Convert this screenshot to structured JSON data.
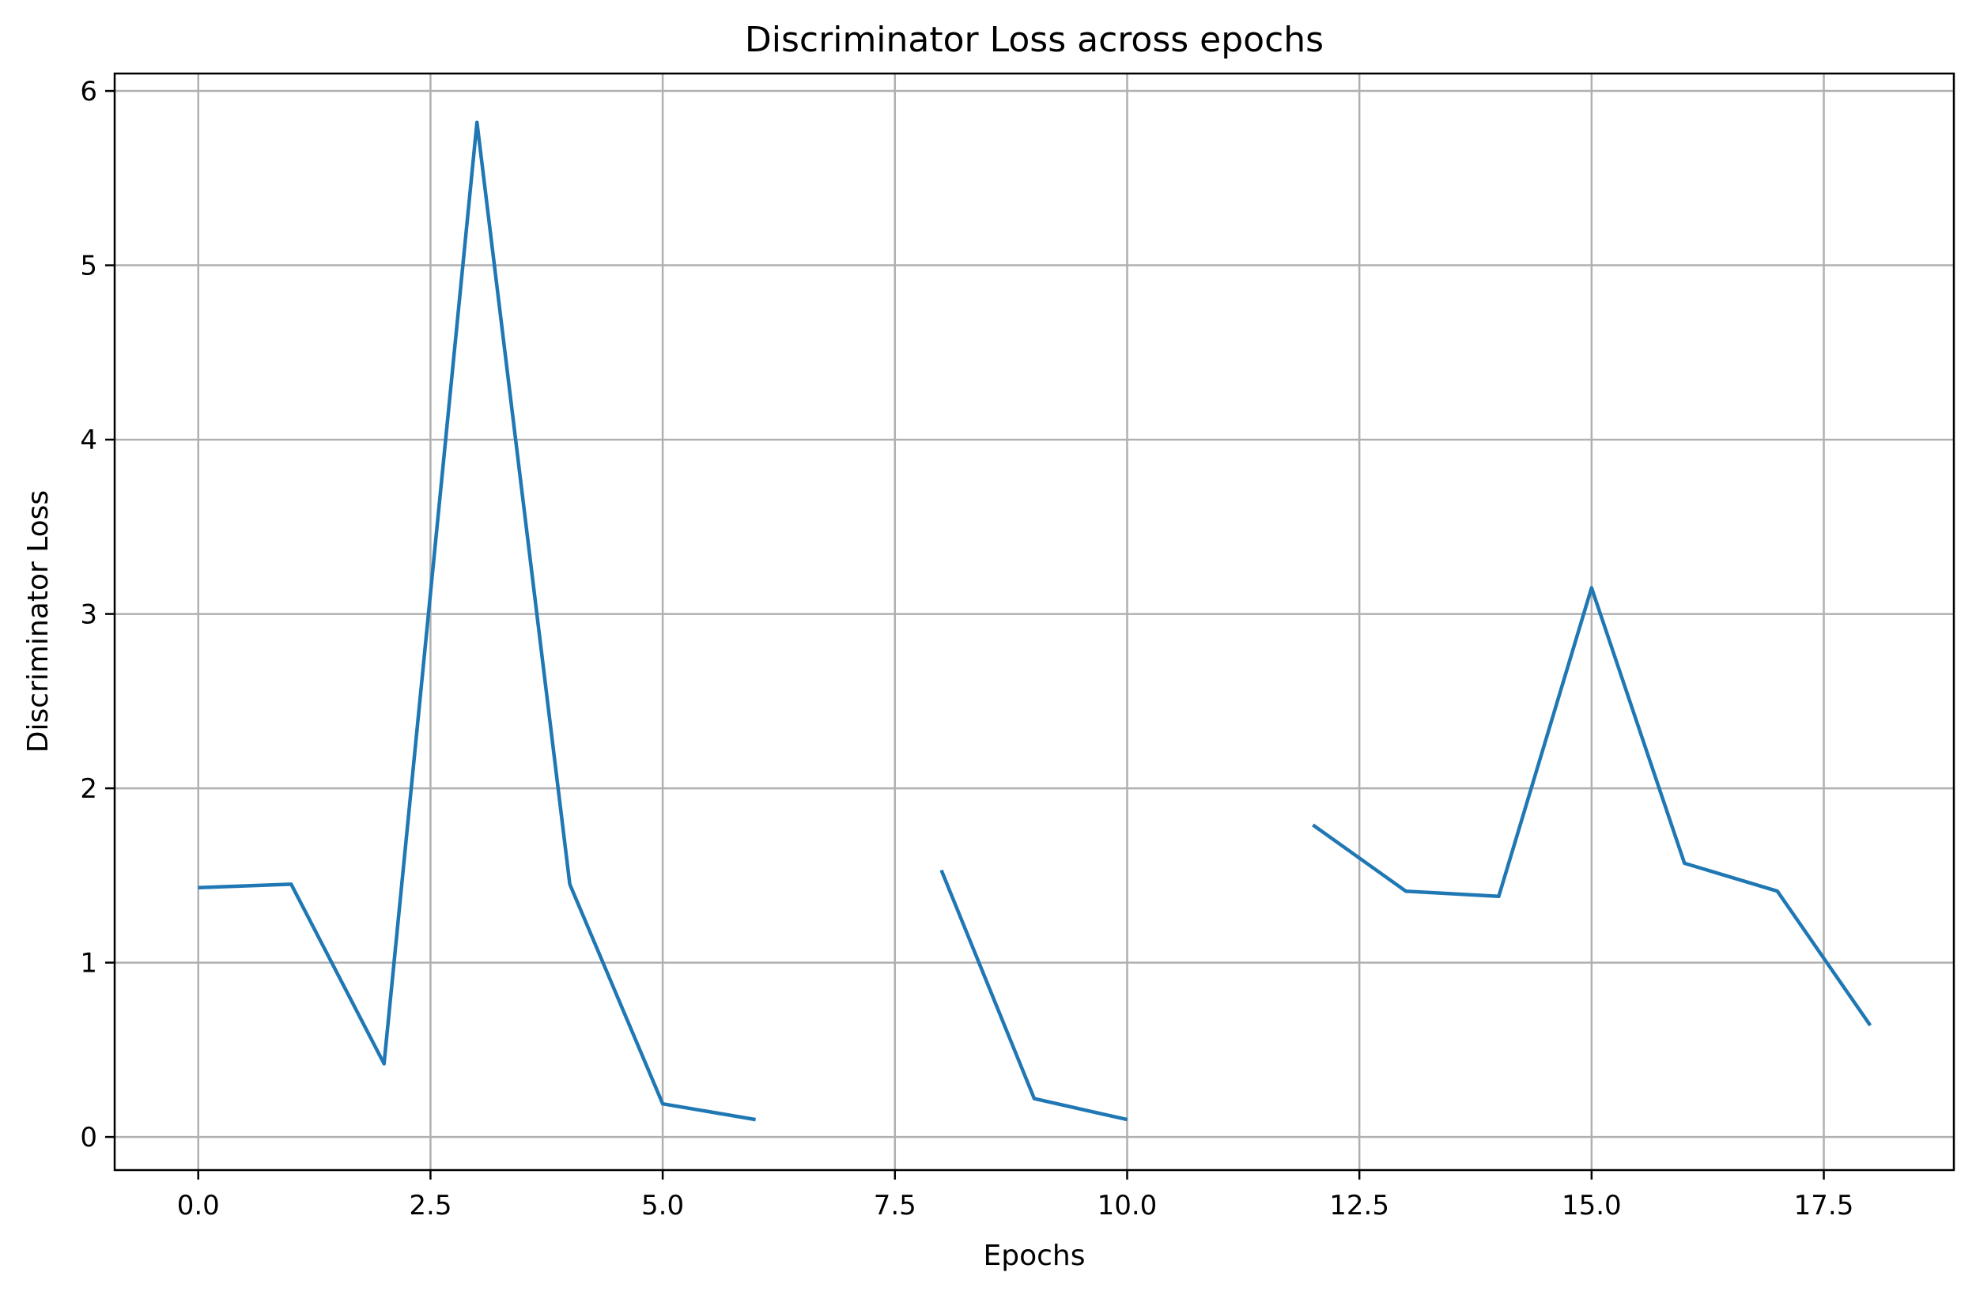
{
  "chart_data": {
    "type": "line",
    "title": "Discriminator Loss across epochs",
    "xlabel": "Epochs",
    "ylabel": "Discriminator Loss",
    "xlim": [
      -0.9,
      18.9
    ],
    "ylim": [
      -0.19,
      6.1
    ],
    "xticks": [
      0.0,
      2.5,
      5.0,
      7.5,
      10.0,
      12.5,
      15.0,
      17.5
    ],
    "xtick_labels": [
      "0.0",
      "2.5",
      "5.0",
      "7.5",
      "10.0",
      "12.5",
      "15.0",
      "17.5"
    ],
    "yticks": [
      0,
      1,
      2,
      3,
      4,
      5,
      6
    ],
    "ytick_labels": [
      "0",
      "1",
      "2",
      "3",
      "4",
      "5",
      "6"
    ],
    "grid": true,
    "series": [
      {
        "color": "#1f77b4",
        "x": [
          0,
          1,
          2,
          3,
          4,
          5,
          6,
          7,
          8,
          9,
          10,
          11,
          12,
          13,
          14,
          15,
          16,
          17,
          18
        ],
        "y": [
          1.43,
          1.45,
          0.42,
          5.82,
          1.45,
          0.19,
          0.1,
          null,
          1.53,
          0.22,
          0.1,
          null,
          1.79,
          1.41,
          1.38,
          3.15,
          1.57,
          1.41,
          0.64
        ]
      }
    ]
  }
}
